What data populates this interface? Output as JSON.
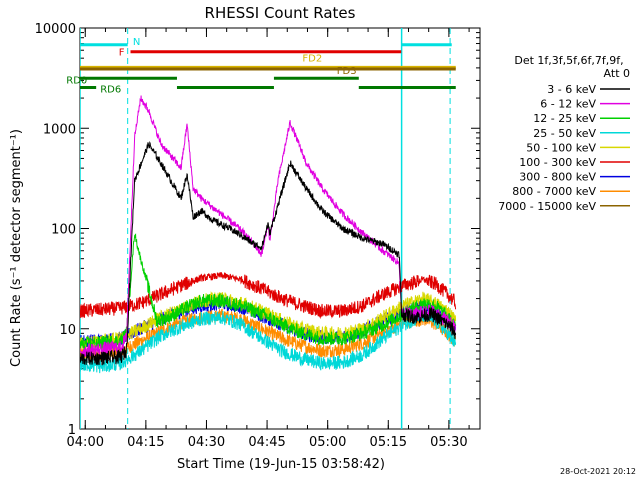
{
  "chart_data": {
    "type": "line",
    "title": "RHESSI Count Rates",
    "xlabel": "Start Time (19-Jun-15 03:58:42)",
    "ylabel": "Count Rate (s⁻¹ detector segment⁻¹)",
    "yscale": "log",
    "ylim": [
      1,
      10000
    ],
    "xlim": [
      0,
      99
    ],
    "x_units": "minutes after 03:58:42",
    "x_ticks": [
      {
        "t": 1.3,
        "label": "04:00"
      },
      {
        "t": 16.3,
        "label": "04:15"
      },
      {
        "t": 31.3,
        "label": "04:30"
      },
      {
        "t": 46.3,
        "label": "04:45"
      },
      {
        "t": 61.3,
        "label": "05:00"
      },
      {
        "t": 76.3,
        "label": "05:15"
      },
      {
        "t": 91.3,
        "label": "05:30"
      }
    ],
    "y_ticks": [
      {
        "v": 1,
        "label": "1"
      },
      {
        "v": 10,
        "label": "10"
      },
      {
        "v": 100,
        "label": "100"
      },
      {
        "v": 1000,
        "label": "1000"
      },
      {
        "v": 10000,
        "label": "10000"
      }
    ],
    "legend": {
      "header": [
        "Det 1f,3f,5f,6f,7f,9f,",
        "Att 0"
      ],
      "position": "right"
    },
    "series": [
      {
        "name": "3 - 6 keV",
        "color": "#000000",
        "points": [
          [
            0,
            5
          ],
          [
            10,
            5.2
          ],
          [
            11.5,
            6
          ],
          [
            13.5,
            300
          ],
          [
            17,
            700
          ],
          [
            20,
            450
          ],
          [
            25,
            200
          ],
          [
            26.5,
            350
          ],
          [
            28,
            130
          ],
          [
            30,
            150
          ],
          [
            33,
            120
          ],
          [
            37,
            100
          ],
          [
            40,
            85
          ],
          [
            43,
            70
          ],
          [
            45,
            65
          ],
          [
            46.5,
            110
          ],
          [
            47,
            90
          ],
          [
            49,
            170
          ],
          [
            52,
            450
          ],
          [
            56,
            250
          ],
          [
            60,
            150
          ],
          [
            65,
            100
          ],
          [
            70,
            80
          ],
          [
            75,
            70
          ],
          [
            79,
            55
          ],
          [
            79.6,
            14
          ],
          [
            83,
            13
          ],
          [
            87,
            14
          ],
          [
            91,
            11
          ],
          [
            93,
            9
          ]
        ]
      },
      {
        "name": "6 - 12 keV",
        "color": "#e000e0",
        "points": [
          [
            0,
            6
          ],
          [
            10,
            6.5
          ],
          [
            11.5,
            8
          ],
          [
            13.5,
            800
          ],
          [
            15,
            2000
          ],
          [
            17,
            1500
          ],
          [
            20,
            700
          ],
          [
            25,
            400
          ],
          [
            26.5,
            1100
          ],
          [
            28,
            250
          ],
          [
            30,
            200
          ],
          [
            33,
            160
          ],
          [
            37,
            120
          ],
          [
            40,
            95
          ],
          [
            43,
            70
          ],
          [
            45,
            55
          ],
          [
            46.5,
            110
          ],
          [
            47,
            75
          ],
          [
            49,
            300
          ],
          [
            52,
            1150
          ],
          [
            56,
            450
          ],
          [
            60,
            250
          ],
          [
            65,
            140
          ],
          [
            70,
            90
          ],
          [
            75,
            60
          ],
          [
            79,
            45
          ],
          [
            79.6,
            14
          ],
          [
            83,
            14
          ],
          [
            87,
            15
          ],
          [
            91,
            12
          ],
          [
            93,
            10
          ]
        ]
      },
      {
        "name": "12 - 25 keV",
        "color": "#00d000",
        "points": [
          [
            0,
            7
          ],
          [
            10,
            7.5
          ],
          [
            11.5,
            9
          ],
          [
            13.5,
            90
          ],
          [
            15,
            50
          ],
          [
            17,
            25
          ],
          [
            19,
            12
          ],
          [
            22,
            13
          ],
          [
            26,
            16
          ],
          [
            30,
            19
          ],
          [
            35,
            19
          ],
          [
            40,
            17
          ],
          [
            45,
            14
          ],
          [
            50,
            11
          ],
          [
            55,
            9
          ],
          [
            60,
            8
          ],
          [
            65,
            8
          ],
          [
            70,
            9
          ],
          [
            75,
            11
          ],
          [
            80,
            14
          ],
          [
            85,
            18
          ],
          [
            88,
            17
          ],
          [
            91,
            13
          ],
          [
            93,
            10
          ]
        ]
      },
      {
        "name": "25 - 50 keV",
        "color": "#00d8d8",
        "points": [
          [
            0,
            4.5
          ],
          [
            5,
            4.2
          ],
          [
            10,
            4.5
          ],
          [
            15,
            6
          ],
          [
            20,
            8.5
          ],
          [
            25,
            10.5
          ],
          [
            30,
            12.5
          ],
          [
            35,
            13
          ],
          [
            40,
            11
          ],
          [
            45,
            8
          ],
          [
            50,
            6
          ],
          [
            55,
            5
          ],
          [
            60,
            4.5
          ],
          [
            65,
            4.6
          ],
          [
            70,
            5.5
          ],
          [
            75,
            8
          ],
          [
            80,
            11
          ],
          [
            85,
            13.5
          ],
          [
            88,
            12
          ],
          [
            91,
            9
          ],
          [
            93,
            7
          ]
        ]
      },
      {
        "name": "50 - 100 keV",
        "color": "#d8d800",
        "points": [
          [
            0,
            7
          ],
          [
            5,
            7.5
          ],
          [
            10,
            8
          ],
          [
            15,
            10
          ],
          [
            20,
            13
          ],
          [
            25,
            16
          ],
          [
            30,
            19
          ],
          [
            35,
            20
          ],
          [
            40,
            18
          ],
          [
            45,
            15
          ],
          [
            50,
            12
          ],
          [
            55,
            10
          ],
          [
            60,
            9
          ],
          [
            65,
            9
          ],
          [
            70,
            10
          ],
          [
            75,
            13
          ],
          [
            80,
            17
          ],
          [
            85,
            20
          ],
          [
            88,
            18
          ],
          [
            91,
            15
          ],
          [
            93,
            12
          ]
        ]
      },
      {
        "name": "100 - 300 keV",
        "color": "#e00000",
        "points": [
          [
            0,
            15
          ],
          [
            5,
            15.5
          ],
          [
            10,
            16
          ],
          [
            15,
            18
          ],
          [
            20,
            22
          ],
          [
            25,
            27
          ],
          [
            30,
            32
          ],
          [
            35,
            34
          ],
          [
            40,
            31
          ],
          [
            45,
            25
          ],
          [
            50,
            20
          ],
          [
            55,
            17
          ],
          [
            60,
            15
          ],
          [
            65,
            15
          ],
          [
            70,
            17
          ],
          [
            75,
            22
          ],
          [
            80,
            27
          ],
          [
            85,
            31
          ],
          [
            88,
            28
          ],
          [
            91,
            22
          ],
          [
            93,
            18
          ]
        ]
      },
      {
        "name": "300 - 800 keV",
        "color": "#0000e0",
        "points": [
          [
            0,
            7.5
          ],
          [
            5,
            7.6
          ],
          [
            10,
            8
          ],
          [
            15,
            10
          ],
          [
            20,
            12.5
          ],
          [
            25,
            15
          ],
          [
            30,
            17
          ],
          [
            35,
            18
          ],
          [
            40,
            16.5
          ],
          [
            45,
            13.5
          ],
          [
            50,
            11
          ],
          [
            55,
            9
          ],
          [
            60,
            8.2
          ],
          [
            65,
            8.3
          ],
          [
            70,
            9.5
          ],
          [
            75,
            12
          ],
          [
            80,
            15
          ],
          [
            85,
            16.5
          ],
          [
            88,
            15
          ],
          [
            91,
            12
          ],
          [
            93,
            10
          ]
        ]
      },
      {
        "name": "800 - 7000 keV",
        "color": "#ff8c00",
        "points": [
          [
            0,
            5.5
          ],
          [
            5,
            5.6
          ],
          [
            10,
            6
          ],
          [
            15,
            7.5
          ],
          [
            20,
            9.5
          ],
          [
            25,
            11.5
          ],
          [
            30,
            13
          ],
          [
            35,
            13.5
          ],
          [
            40,
            12.5
          ],
          [
            45,
            10
          ],
          [
            50,
            8
          ],
          [
            55,
            6.8
          ],
          [
            60,
            6
          ],
          [
            65,
            6.2
          ],
          [
            70,
            7.2
          ],
          [
            75,
            9.2
          ],
          [
            80,
            11.5
          ],
          [
            85,
            12.5
          ],
          [
            88,
            11.2
          ],
          [
            91,
            9
          ],
          [
            93,
            7.5
          ]
        ]
      },
      {
        "name": "7000 - 15000 keV",
        "color": "#8c6400",
        "points": []
      }
    ],
    "vertical_lines": [
      {
        "t": 0,
        "style": "solid"
      },
      {
        "t": 11.8,
        "style": "dashed"
      },
      {
        "t": 79.6,
        "style": "solid"
      },
      {
        "t": 91.6,
        "style": "dashed"
      }
    ],
    "annotation_bars": [
      {
        "label": "N",
        "color": "#00e0e0",
        "value": 6800,
        "segments": [
          [
            0,
            11.8
          ],
          [
            79.6,
            92
          ]
        ]
      },
      {
        "label": "F",
        "color": "#e00000",
        "value": 5800,
        "segments": [
          [
            12.5,
            79.5
          ]
        ]
      },
      {
        "label": "FD2",
        "color": "#d8b400",
        "value": 4050,
        "segments": [
          [
            0,
            93
          ]
        ]
      },
      {
        "label": "FD3",
        "color": "#8c6400",
        "value": 3900,
        "segments": [
          [
            0,
            93
          ]
        ]
      },
      {
        "label": "RD0",
        "color": "#007800",
        "value": 3150,
        "segments": [
          [
            0,
            24
          ],
          [
            48,
            69
          ]
        ]
      },
      {
        "label": "RD6",
        "color": "#007800",
        "value": 2550,
        "segments": [
          [
            0,
            4
          ],
          [
            24,
            48
          ],
          [
            69,
            93
          ]
        ]
      }
    ]
  },
  "footer": {
    "timestamp": "28-Oct-2021 20:12"
  }
}
